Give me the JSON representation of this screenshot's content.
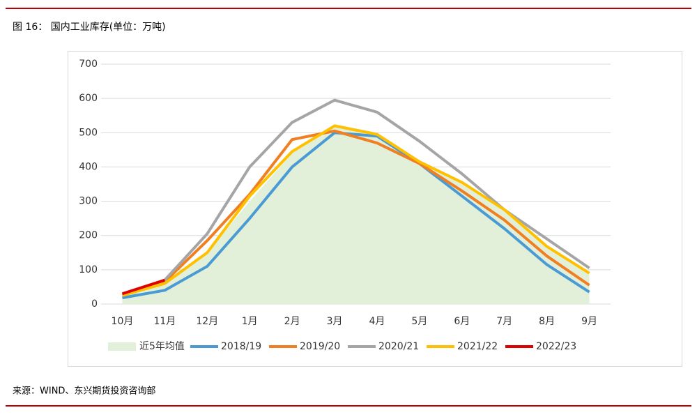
{
  "header": {
    "title": "图 16： 国内工业库存(单位：万吨)"
  },
  "chart_data": {
    "type": "line",
    "categories": [
      "10月",
      "11月",
      "12月",
      "1月",
      "2月",
      "3月",
      "4月",
      "5月",
      "6月",
      "7月",
      "8月",
      "9月"
    ],
    "series": [
      {
        "name": "近5年均值",
        "type": "area",
        "color": "#e2f0d9",
        "values": [
          22,
          60,
          150,
          300,
          440,
          525,
          500,
          420,
          350,
          270,
          165,
          85
        ]
      },
      {
        "name": "2018/19",
        "color": "#4a9bd4",
        "values": [
          18,
          40,
          110,
          250,
          400,
          500,
          490,
          410,
          315,
          220,
          115,
          35
        ]
      },
      {
        "name": "2019/20",
        "color": "#f07f22",
        "values": [
          25,
          65,
          185,
          320,
          480,
          505,
          470,
          410,
          330,
          245,
          140,
          55
        ]
      },
      {
        "name": "2020/21",
        "color": "#a5a5a5",
        "values": [
          25,
          70,
          205,
          400,
          530,
          595,
          560,
          475,
          380,
          275,
          190,
          105
        ]
      },
      {
        "name": "2021/22",
        "color": "#ffc000",
        "values": [
          25,
          60,
          150,
          315,
          445,
          520,
          495,
          415,
          355,
          275,
          168,
          90
        ]
      },
      {
        "name": "2022/23",
        "color": "#e00000",
        "values": [
          30,
          70,
          null,
          null,
          null,
          null,
          null,
          null,
          null,
          null,
          null,
          null
        ]
      }
    ],
    "ylim": [
      0,
      700
    ],
    "yticks": [
      0,
      100,
      200,
      300,
      400,
      500,
      600,
      700
    ],
    "grid": true,
    "legend": "bottom"
  },
  "footer": {
    "source": "来源：WIND、东兴期货投资咨询部"
  }
}
